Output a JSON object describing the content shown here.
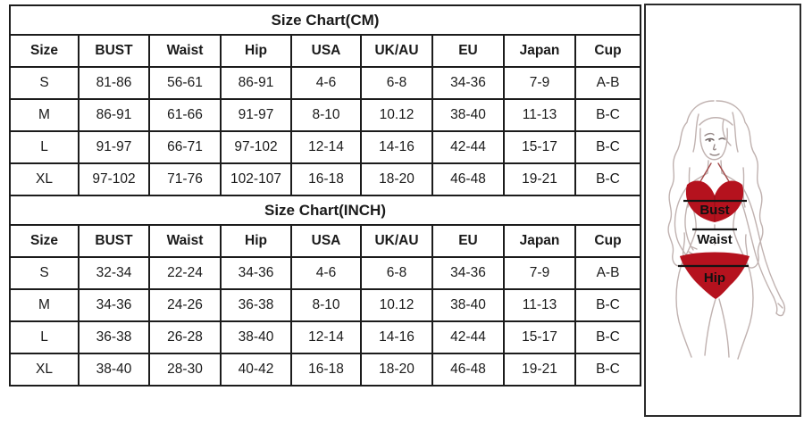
{
  "chart_data": [
    {
      "type": "table",
      "title": "Size Chart(CM)",
      "headers": [
        "Size",
        "BUST",
        "Waist",
        "Hip",
        "USA",
        "UK/AU",
        "EU",
        "Japan",
        "Cup"
      ],
      "rows": [
        [
          "S",
          "81-86",
          "56-61",
          "86-91",
          "4-6",
          "6-8",
          "34-36",
          "7-9",
          "A-B"
        ],
        [
          "M",
          "86-91",
          "61-66",
          "91-97",
          "8-10",
          "10.12",
          "38-40",
          "11-13",
          "B-C"
        ],
        [
          "L",
          "91-97",
          "66-71",
          "97-102",
          "12-14",
          "14-16",
          "42-44",
          "15-17",
          "B-C"
        ],
        [
          "XL",
          "97-102",
          "71-76",
          "102-107",
          "16-18",
          "18-20",
          "46-48",
          "19-21",
          "B-C"
        ]
      ]
    },
    {
      "type": "table",
      "title": "Size Chart(INCH)",
      "headers": [
        "Size",
        "BUST",
        "Waist",
        "Hip",
        "USA",
        "UK/AU",
        "EU",
        "Japan",
        "Cup"
      ],
      "rows": [
        [
          "S",
          "32-34",
          "22-24",
          "34-36",
          "4-6",
          "6-8",
          "34-36",
          "7-9",
          "A-B"
        ],
        [
          "M",
          "34-36",
          "24-26",
          "36-38",
          "8-10",
          "10.12",
          "38-40",
          "11-13",
          "B-C"
        ],
        [
          "L",
          "36-38",
          "26-28",
          "38-40",
          "12-14",
          "14-16",
          "42-44",
          "15-17",
          "B-C"
        ],
        [
          "XL",
          "38-40",
          "28-30",
          "40-42",
          "16-18",
          "18-20",
          "46-48",
          "19-21",
          "B-C"
        ]
      ]
    }
  ],
  "figure": {
    "labels": {
      "bust": "Bust",
      "waist": "Waist",
      "hip": "Hip"
    },
    "colors": {
      "bikini_red": "#b5121e",
      "bikini_edge": "#8c0d16",
      "line_art": "#c0b2b0",
      "measure_line": "#141414",
      "label_text": "#111111",
      "table_border": "#1c1c1c"
    }
  }
}
